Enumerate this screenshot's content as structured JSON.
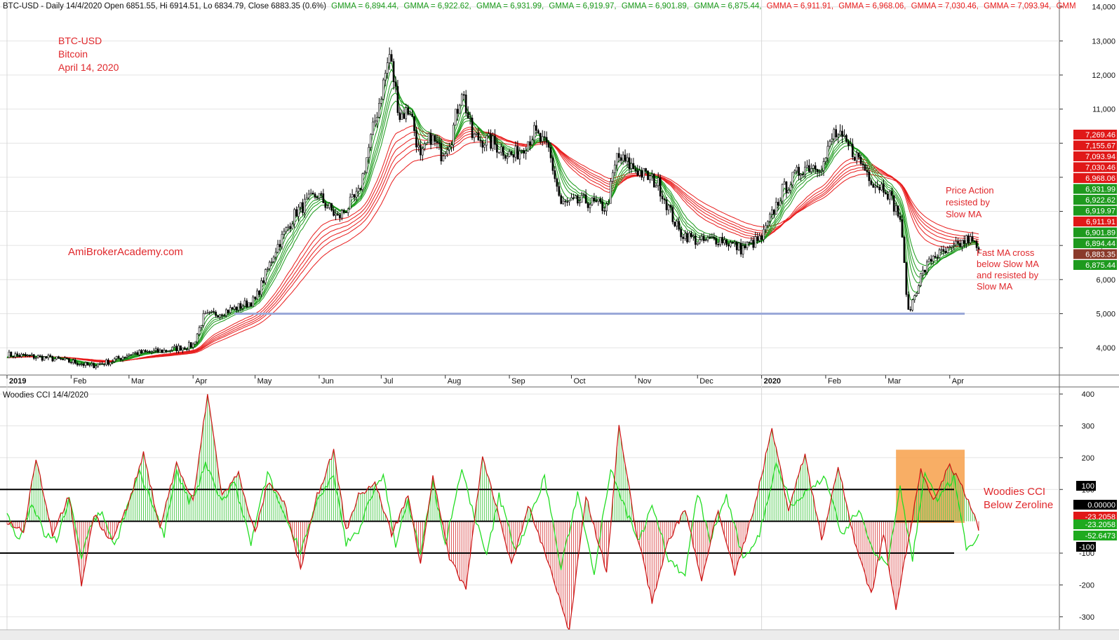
{
  "header": {
    "prefix": "BTC-USD - Daily 14/4/2020 Open 6851.55, Hi 6914.51, Lo 6834.79, Close 6883.35 (0.6%)",
    "gmma_fast": [
      "GMMA = 6,894.44,",
      "GMMA = 6,922.62,",
      "GMMA = 6,931.99,",
      "GMMA = 6,919.97,",
      "GMMA = 6,901.89,",
      "GMMA = 6,875.44,"
    ],
    "gmma_slow": [
      "GMMA = 6,911.91,",
      "GMMA = 6,968.06,",
      "GMMA = 7,030.46,",
      "GMMA = 7,093.94,",
      "GMM"
    ]
  },
  "annotations": {
    "title_lines": [
      "BTC-USD",
      "Bitcoin",
      "April 14, 2020"
    ],
    "watermark": "AmiBrokerAcademy.com",
    "price_action": [
      "Price Action",
      "resisted by",
      "Slow MA"
    ],
    "fast_ma": [
      "Fast MA cross",
      "below Slow MA",
      "and resisted by",
      "Slow MA"
    ],
    "cci_note": [
      "Woodies CCI",
      "Below Zeroline"
    ]
  },
  "lower_pane_title": "Woodies CCI  14/4/2020",
  "colors": {
    "fast_ma": "#1a9a1a",
    "slow_ma": "#e81c1c",
    "support_line": "#9aa8d8",
    "cci_line": "#22dd22",
    "turbo_line": "#cc1111",
    "highlight": "#f7a04a",
    "annotation_red": "#e0282c"
  },
  "chart_data": [
    {
      "type": "candlestick",
      "title": "BTC-USD - Daily 14/4/2020",
      "ylim": [
        3200,
        14200
      ],
      "yticks": [
        "4,000",
        "5,000",
        "6,000",
        "7,000",
        "8,000",
        "9,000",
        "10,000",
        "11,000",
        "12,000",
        "13,000",
        "14,000"
      ],
      "ytick_values": [
        4000,
        5000,
        6000,
        7000,
        8000,
        9000,
        10000,
        11000,
        12000,
        13000,
        14000
      ],
      "months": [
        "2019",
        "Feb",
        "Mar",
        "Apr",
        "May",
        "Jun",
        "Jul",
        "Aug",
        "Sep",
        "Oct",
        "Nov",
        "Dec",
        "2020",
        "Feb",
        "Mar",
        "Apr"
      ],
      "month_index": [
        0,
        31,
        59,
        90,
        120,
        151,
        181,
        212,
        243,
        273,
        304,
        334,
        365,
        396,
        425,
        456
      ],
      "price_path": [
        [
          0,
          3800
        ],
        [
          20,
          3700
        ],
        [
          35,
          3550
        ],
        [
          40,
          3460
        ],
        [
          50,
          3600
        ],
        [
          60,
          3830
        ],
        [
          75,
          3900
        ],
        [
          90,
          4080
        ],
        [
          95,
          4900
        ],
        [
          110,
          5150
        ],
        [
          120,
          5400
        ],
        [
          130,
          6900
        ],
        [
          140,
          8000
        ],
        [
          150,
          8500
        ],
        [
          160,
          7800
        ],
        [
          170,
          8500
        ],
        [
          180,
          11200
        ],
        [
          185,
          12600
        ],
        [
          190,
          10800
        ],
        [
          195,
          11000
        ],
        [
          200,
          9500
        ],
        [
          205,
          10200
        ],
        [
          210,
          9700
        ],
        [
          215,
          10200
        ],
        [
          220,
          11600
        ],
        [
          225,
          10200
        ],
        [
          235,
          10000
        ],
        [
          245,
          9600
        ],
        [
          255,
          10300
        ],
        [
          262,
          9800
        ],
        [
          268,
          8200
        ],
        [
          280,
          8300
        ],
        [
          290,
          8100
        ],
        [
          295,
          9600
        ],
        [
          305,
          9200
        ],
        [
          315,
          8800
        ],
        [
          325,
          7400
        ],
        [
          335,
          7100
        ],
        [
          345,
          7200
        ],
        [
          355,
          6900
        ],
        [
          365,
          7200
        ],
        [
          375,
          8600
        ],
        [
          385,
          9300
        ],
        [
          395,
          9400
        ],
        [
          400,
          10300
        ],
        [
          410,
          9700
        ],
        [
          420,
          8800
        ],
        [
          425,
          8700
        ],
        [
          432,
          7800
        ],
        [
          436,
          5000
        ],
        [
          442,
          6100
        ],
        [
          448,
          6700
        ],
        [
          455,
          6800
        ],
        [
          465,
          7200
        ],
        [
          470,
          6883
        ]
      ],
      "last_close": 6883.35,
      "support_level": 5000,
      "gmma_fast": [
        6894.44,
        6922.62,
        6931.99,
        6919.97,
        6901.89,
        6875.44
      ],
      "gmma_slow": [
        6911.91,
        6968.06,
        7030.46,
        7093.94,
        7155.67,
        7269.46
      ],
      "right_labels": [
        {
          "text": "7,269.46",
          "value": 7269.46,
          "kind": "slow"
        },
        {
          "text": "7,155.67",
          "value": 7155.67,
          "kind": "slow"
        },
        {
          "text": "7,093.94",
          "value": 7093.94,
          "kind": "slow"
        },
        {
          "text": "7,030.46",
          "value": 7030.46,
          "kind": "slow"
        },
        {
          "text": "6,968.06",
          "value": 6968.06,
          "kind": "slow"
        },
        {
          "text": "6,931.99",
          "value": 6931.99,
          "kind": "fast"
        },
        {
          "text": "6,922.62",
          "value": 6922.62,
          "kind": "fast"
        },
        {
          "text": "6,919.97",
          "value": 6919.97,
          "kind": "fast"
        },
        {
          "text": "6,911.91",
          "value": 6911.91,
          "kind": "slow"
        },
        {
          "text": "6,901.89",
          "value": 6901.89,
          "kind": "fast"
        },
        {
          "text": "6,894.44",
          "value": 6894.44,
          "kind": "fast"
        },
        {
          "text": "6,883.35",
          "value": 6883.35,
          "kind": "close"
        },
        {
          "text": "6,875.44",
          "value": 6875.44,
          "kind": "fast"
        }
      ]
    },
    {
      "type": "line",
      "title": "Woodies CCI  14/4/2020",
      "ylim": [
        -340,
        420
      ],
      "yticks": [
        "-300",
        "-200",
        "-100",
        "100",
        "200",
        "300",
        "400"
      ],
      "ytick_values": [
        -300,
        -200,
        -100,
        100,
        200,
        300,
        400
      ],
      "levels": [
        100,
        0,
        -100
      ],
      "cci_path": [
        [
          0,
          20
        ],
        [
          6,
          -60
        ],
        [
          12,
          60
        ],
        [
          18,
          -40
        ],
        [
          24,
          -60
        ],
        [
          30,
          70
        ],
        [
          36,
          -110
        ],
        [
          40,
          -10
        ],
        [
          46,
          30
        ],
        [
          52,
          -80
        ],
        [
          58,
          40
        ],
        [
          64,
          150
        ],
        [
          70,
          60
        ],
        [
          76,
          -40
        ],
        [
          82,
          160
        ],
        [
          88,
          60
        ],
        [
          92,
          100
        ],
        [
          96,
          180
        ],
        [
          104,
          60
        ],
        [
          110,
          120
        ],
        [
          118,
          -70
        ],
        [
          126,
          150
        ],
        [
          134,
          20
        ],
        [
          142,
          -90
        ],
        [
          150,
          60
        ],
        [
          158,
          140
        ],
        [
          164,
          -70
        ],
        [
          170,
          -30
        ],
        [
          176,
          80
        ],
        [
          182,
          140
        ],
        [
          188,
          -70
        ],
        [
          194,
          60
        ],
        [
          200,
          -100
        ],
        [
          206,
          120
        ],
        [
          212,
          -70
        ],
        [
          220,
          160
        ],
        [
          226,
          20
        ],
        [
          232,
          -110
        ],
        [
          238,
          80
        ],
        [
          246,
          -90
        ],
        [
          252,
          -10
        ],
        [
          260,
          140
        ],
        [
          268,
          -150
        ],
        [
          276,
          90
        ],
        [
          284,
          -160
        ],
        [
          292,
          170
        ],
        [
          300,
          20
        ],
        [
          306,
          -60
        ],
        [
          312,
          60
        ],
        [
          320,
          -120
        ],
        [
          328,
          -170
        ],
        [
          334,
          90
        ],
        [
          340,
          -60
        ],
        [
          348,
          80
        ],
        [
          356,
          -120
        ],
        [
          364,
          -40
        ],
        [
          372,
          180
        ],
        [
          380,
          50
        ],
        [
          388,
          100
        ],
        [
          396,
          140
        ],
        [
          404,
          -50
        ],
        [
          412,
          40
        ],
        [
          420,
          -110
        ],
        [
          426,
          -130
        ],
        [
          432,
          100
        ],
        [
          438,
          -120
        ],
        [
          444,
          160
        ],
        [
          450,
          60
        ],
        [
          458,
          140
        ],
        [
          464,
          -90
        ],
        [
          470,
          -45
        ]
      ],
      "turbo_path": [
        [
          0,
          0
        ],
        [
          8,
          -30
        ],
        [
          14,
          200
        ],
        [
          22,
          -40
        ],
        [
          30,
          80
        ],
        [
          36,
          -200
        ],
        [
          42,
          20
        ],
        [
          50,
          -60
        ],
        [
          58,
          40
        ],
        [
          66,
          210
        ],
        [
          74,
          -20
        ],
        [
          82,
          180
        ],
        [
          90,
          60
        ],
        [
          97,
          400
        ],
        [
          104,
          80
        ],
        [
          112,
          150
        ],
        [
          120,
          -40
        ],
        [
          126,
          120
        ],
        [
          134,
          60
        ],
        [
          142,
          -150
        ],
        [
          150,
          80
        ],
        [
          158,
          220
        ],
        [
          164,
          -30
        ],
        [
          170,
          80
        ],
        [
          178,
          120
        ],
        [
          186,
          -40
        ],
        [
          194,
          80
        ],
        [
          200,
          -130
        ],
        [
          206,
          140
        ],
        [
          214,
          -120
        ],
        [
          222,
          -210
        ],
        [
          230,
          200
        ],
        [
          238,
          20
        ],
        [
          244,
          -140
        ],
        [
          252,
          50
        ],
        [
          262,
          -130
        ],
        [
          272,
          -350
        ],
        [
          280,
          80
        ],
        [
          290,
          -160
        ],
        [
          296,
          300
        ],
        [
          304,
          -20
        ],
        [
          312,
          -250
        ],
        [
          320,
          -60
        ],
        [
          328,
          40
        ],
        [
          336,
          -190
        ],
        [
          344,
          40
        ],
        [
          352,
          -170
        ],
        [
          362,
          60
        ],
        [
          370,
          290
        ],
        [
          378,
          40
        ],
        [
          386,
          210
        ],
        [
          394,
          -60
        ],
        [
          402,
          170
        ],
        [
          410,
          -60
        ],
        [
          418,
          -230
        ],
        [
          424,
          -40
        ],
        [
          430,
          -270
        ],
        [
          436,
          -60
        ],
        [
          442,
          160
        ],
        [
          448,
          60
        ],
        [
          456,
          180
        ],
        [
          464,
          80
        ],
        [
          470,
          -23
        ]
      ],
      "highlight_range": [
        430,
        470
      ],
      "highlight_values": [
        -5,
        225
      ],
      "right_labels": [
        {
          "text": "100",
          "value": 100,
          "kind": "level"
        },
        {
          "text": "0.00000",
          "value": 0,
          "kind": "zero"
        },
        {
          "text": "-23.2058",
          "value": -23.2058,
          "kind": "turbo"
        },
        {
          "text": "-23.2058",
          "value": -23.2058,
          "kind": "cci_top"
        },
        {
          "text": "-52.6473",
          "value": -52.6473,
          "kind": "cci"
        },
        {
          "text": "-100",
          "value": -100,
          "kind": "level"
        }
      ]
    }
  ]
}
